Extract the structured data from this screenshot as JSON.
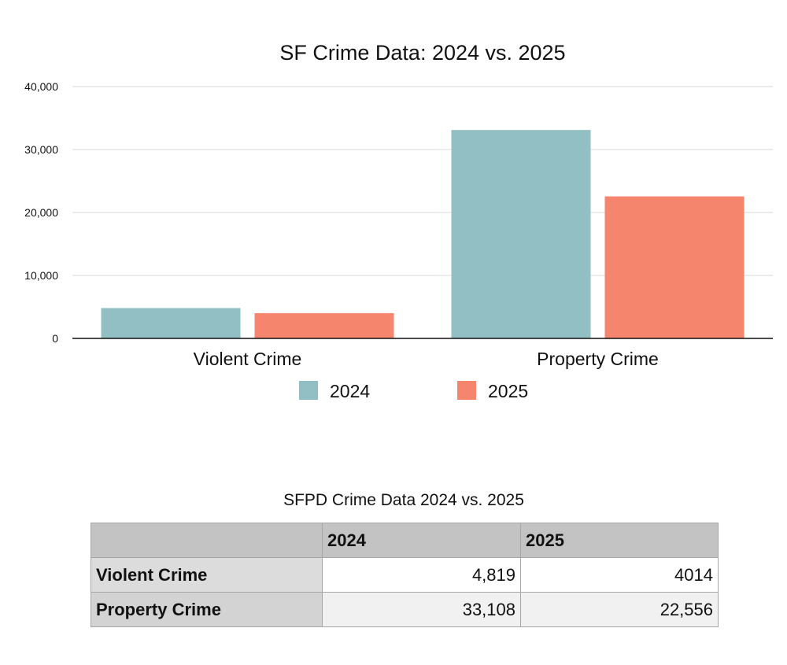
{
  "chart_data": {
    "type": "bar",
    "title": "SF Crime Data:  2024 vs. 2025",
    "categories": [
      "Violent Crime",
      "Property Crime"
    ],
    "series": [
      {
        "name": "2024",
        "values": [
          4819,
          33108
        ],
        "color": "#92bfc4"
      },
      {
        "name": "2025",
        "values": [
          4014,
          22556
        ],
        "color": "#f5866d"
      }
    ],
    "ylim": [
      0,
      40000
    ],
    "yticks": [
      0,
      10000,
      20000,
      30000,
      40000
    ],
    "ytick_labels": [
      "0",
      "10,000",
      "20,000",
      "30,000",
      "40,000"
    ],
    "grid": true,
    "legend_position": "bottom-center"
  },
  "table": {
    "title": "SFPD Crime Data 2024 vs. 2025",
    "headers": [
      "",
      "2024",
      "2025"
    ],
    "rows": [
      {
        "label": "Violent Crime",
        "values": [
          "4,819",
          "4014"
        ]
      },
      {
        "label": "Property Crime",
        "values": [
          "33,108",
          "22,556"
        ]
      }
    ]
  }
}
